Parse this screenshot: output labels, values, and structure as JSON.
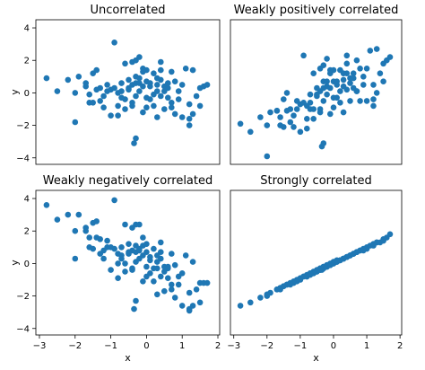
{
  "colors": {
    "marker": "#1f77b4"
  },
  "chart_data": [
    {
      "type": "scatter",
      "title": "Uncorrelated",
      "xlabel": "",
      "ylabel": "y",
      "xlim": [
        -3.1,
        2.05
      ],
      "ylim": [
        -4.4,
        4.5
      ],
      "xticks": [],
      "yticks": [
        -4,
        -2,
        0,
        2,
        4
      ],
      "xticklabels": [],
      "yticklabels": [
        "−4",
        "−2",
        "0",
        "2",
        "4"
      ],
      "x": [
        -2.8,
        -2.5,
        -2.2,
        -2.0,
        -1.9,
        -1.7,
        -1.6,
        -1.6,
        -1.5,
        -1.4,
        -1.4,
        -1.3,
        -1.3,
        -1.2,
        -1.1,
        -1.1,
        -1.0,
        -1.0,
        -0.9,
        -0.8,
        -0.8,
        -0.7,
        -0.7,
        -0.6,
        -0.6,
        -0.5,
        -0.5,
        -0.5,
        -0.4,
        -0.4,
        -0.4,
        -0.3,
        -0.3,
        -0.3,
        -0.3,
        -0.2,
        -0.2,
        -0.2,
        -0.1,
        -0.1,
        -0.1,
        0.0,
        0.0,
        0.0,
        0.0,
        0.1,
        0.1,
        0.1,
        0.2,
        0.2,
        0.3,
        0.3,
        0.3,
        0.4,
        0.4,
        0.4,
        0.5,
        0.5,
        0.5,
        0.6,
        0.6,
        0.7,
        0.7,
        0.8,
        0.8,
        0.9,
        1.0,
        1.0,
        1.1,
        1.2,
        1.2,
        1.3,
        1.3,
        1.4,
        1.5,
        1.6,
        1.7,
        -0.9,
        -0.3,
        -0.35,
        -2.0,
        -1.5,
        -0.2,
        -0.1,
        0.4,
        -0.6,
        0.9,
        1.2,
        -1.2,
        -0.8,
        0.2,
        1.5,
        0.7,
        -0.4,
        0.6,
        -1.7,
        -0.7,
        0.3
      ],
      "y": [
        0.9,
        0.1,
        0.8,
        -1.8,
        1.0,
        0.4,
        -0.6,
        -0.1,
        1.2,
        0.2,
        1.4,
        0.3,
        -0.5,
        -0.2,
        0.1,
        0.5,
        0.2,
        -1.4,
        0.3,
        0.0,
        -1.4,
        0.1,
        0.6,
        -0.4,
        -1.0,
        0.8,
        0.2,
        0.3,
        1.9,
        0.5,
        -0.6,
        0.6,
        1.0,
        -0.2,
        2.0,
        0.1,
        0.6,
        2.2,
        -1.2,
        0.4,
        1.5,
        -0.3,
        0.7,
        -0.9,
        1.4,
        0.4,
        0.6,
        -0.4,
        1.2,
        -0.8,
        0.1,
        0.5,
        -1.5,
        0.8,
        -0.2,
        1.9,
        0.1,
        0.4,
        -1.0,
        0.6,
        -0.3,
        1.3,
        -0.6,
        0.7,
        -1.3,
        0.1,
        0.5,
        -1.5,
        1.5,
        -1.6,
        -0.7,
        -1.3,
        1.4,
        -0.2,
        0.3,
        0.4,
        0.5,
        3.1,
        -2.8,
        -3.1,
        0.0,
        -0.6,
        0.9,
        1.3,
        1.4,
        1.8,
        -0.4,
        -2.0,
        -0.9,
        -0.8,
        -0.1,
        -0.8,
        -0.9,
        -0.8,
        0.3,
        0.6,
        -0.3,
        0.9
      ]
    },
    {
      "type": "scatter",
      "title": "Weakly positively correlated",
      "xlabel": "",
      "ylabel": "",
      "xlim": [
        -3.1,
        2.05
      ],
      "ylim": [
        -4.4,
        4.5
      ],
      "xticks": [],
      "yticks": [],
      "xticklabels": [],
      "yticklabels": [],
      "x": [
        -2.8,
        -2.5,
        -2.2,
        -2.0,
        -1.9,
        -1.7,
        -1.6,
        -1.6,
        -1.5,
        -1.4,
        -1.4,
        -1.3,
        -1.3,
        -1.2,
        -1.1,
        -1.1,
        -1.0,
        -1.0,
        -0.9,
        -0.8,
        -0.8,
        -0.7,
        -0.7,
        -0.6,
        -0.6,
        -0.5,
        -0.5,
        -0.5,
        -0.4,
        -0.4,
        -0.4,
        -0.3,
        -0.3,
        -0.3,
        -0.3,
        -0.2,
        -0.2,
        -0.2,
        -0.1,
        -0.1,
        -0.1,
        0.0,
        0.0,
        0.0,
        0.0,
        0.1,
        0.1,
        0.1,
        0.2,
        0.2,
        0.3,
        0.3,
        0.3,
        0.4,
        0.4,
        0.4,
        0.5,
        0.5,
        0.5,
        0.6,
        0.6,
        0.7,
        0.7,
        0.8,
        0.8,
        0.9,
        1.0,
        1.0,
        1.1,
        1.2,
        1.2,
        1.3,
        1.3,
        1.4,
        1.5,
        1.6,
        1.7,
        -0.9,
        -0.3,
        -0.35,
        -2.0,
        -1.5,
        -0.2,
        -0.1,
        0.4,
        -0.6,
        0.9,
        1.2,
        -1.2,
        -0.8,
        0.2,
        1.5,
        0.7,
        -0.4,
        0.6,
        -1.7,
        -0.7,
        0.3
      ],
      "y": [
        -1.9,
        -2.4,
        -1.5,
        -3.9,
        -1.2,
        -1.1,
        -2.0,
        -1.5,
        -0.4,
        -1.1,
        0.0,
        -1.0,
        -1.8,
        -1.4,
        -1.0,
        -0.5,
        -0.7,
        -2.4,
        -0.6,
        -0.8,
        -2.2,
        -0.6,
        -0.1,
        -1.0,
        -1.6,
        0.3,
        -0.2,
        -0.1,
        1.5,
        0.1,
        -1.0,
        0.3,
        0.7,
        -0.5,
        1.7,
        -0.1,
        0.4,
        2.1,
        -1.3,
        0.3,
        1.4,
        -0.3,
        0.7,
        -0.9,
        1.4,
        0.5,
        0.7,
        -0.3,
        1.4,
        -0.6,
        0.4,
        0.8,
        -1.2,
        1.2,
        0.2,
        2.3,
        0.6,
        0.9,
        -0.5,
        1.2,
        0.3,
        2.0,
        0.1,
        1.5,
        -0.5,
        1.0,
        1.5,
        -0.5,
        2.6,
        -0.4,
        0.5,
        0.0,
        2.7,
        1.2,
        1.8,
        2.0,
        2.2,
        2.3,
        -3.1,
        -3.3,
        -2.0,
        -2.1,
        0.7,
        1.2,
        1.8,
        1.2,
        0.5,
        -0.8,
        -2.1,
        -1.6,
        0.1,
        0.7,
        0.1,
        -1.2,
        0.9,
        -1.1,
        -1.0,
        1.2
      ]
    },
    {
      "type": "scatter",
      "title": "Weakly negatively correlated",
      "xlabel": "x",
      "ylabel": "y",
      "xlim": [
        -3.1,
        2.05
      ],
      "ylim": [
        -4.4,
        4.5
      ],
      "xticks": [
        -3,
        -2,
        -1,
        0,
        1,
        2
      ],
      "yticks": [
        -4,
        -2,
        0,
        2,
        4
      ],
      "xticklabels": [
        "−3",
        "−2",
        "−1",
        "0",
        "1",
        "2"
      ],
      "yticklabels": [
        "−4",
        "−2",
        "0",
        "2",
        "4"
      ],
      "x": [
        -2.8,
        -2.5,
        -2.2,
        -2.0,
        -1.9,
        -1.7,
        -1.6,
        -1.6,
        -1.5,
        -1.4,
        -1.4,
        -1.3,
        -1.3,
        -1.2,
        -1.1,
        -1.1,
        -1.0,
        -1.0,
        -0.9,
        -0.8,
        -0.8,
        -0.7,
        -0.7,
        -0.6,
        -0.6,
        -0.5,
        -0.5,
        -0.5,
        -0.4,
        -0.4,
        -0.4,
        -0.3,
        -0.3,
        -0.3,
        -0.3,
        -0.2,
        -0.2,
        -0.2,
        -0.1,
        -0.1,
        -0.1,
        0.0,
        0.0,
        0.0,
        0.0,
        0.1,
        0.1,
        0.1,
        0.2,
        0.2,
        0.3,
        0.3,
        0.3,
        0.4,
        0.4,
        0.4,
        0.5,
        0.5,
        0.5,
        0.6,
        0.6,
        0.7,
        0.7,
        0.8,
        0.8,
        0.9,
        1.0,
        1.0,
        1.1,
        1.2,
        1.2,
        1.3,
        1.3,
        1.4,
        1.5,
        1.6,
        1.7,
        -0.9,
        -0.3,
        -0.35,
        -2.0,
        -1.5,
        -0.2,
        -0.1,
        0.4,
        -0.6,
        0.9,
        1.2,
        -1.2,
        -0.8,
        0.2,
        1.5,
        0.7,
        -0.4,
        0.6,
        -1.7,
        -0.7,
        0.3
      ],
      "y": [
        3.6,
        2.7,
        3.0,
        0.3,
        3.0,
        2.0,
        1.0,
        1.6,
        2.5,
        1.6,
        2.6,
        1.5,
        0.6,
        0.8,
        1.0,
        1.4,
        1.0,
        -0.4,
        0.9,
        0.6,
        -0.9,
        0.5,
        1.0,
        0.0,
        -0.5,
        1.2,
        0.6,
        0.7,
        2.2,
        0.8,
        -0.4,
        0.7,
        1.1,
        0.1,
        2.4,
        0.3,
        0.8,
        2.4,
        -1.1,
        0.5,
        1.6,
        -0.2,
        0.7,
        -0.8,
        1.2,
        0.2,
        0.4,
        -0.6,
        0.9,
        -1.1,
        -0.3,
        0.1,
        -1.9,
        0.3,
        -0.8,
        1.3,
        -0.5,
        -0.2,
        -1.7,
        -0.2,
        -0.9,
        0.6,
        -1.3,
        -0.1,
        -2.1,
        -0.8,
        -0.6,
        -2.6,
        0.5,
        -2.8,
        -1.8,
        -2.6,
        0.1,
        -1.6,
        -1.2,
        -1.2,
        -1.2,
        3.9,
        -2.3,
        -2.8,
        2.0,
        0.9,
        0.9,
        1.1,
        0.7,
        2.4,
        -1.3,
        -2.9,
        0.3,
        -0.0,
        -0.3,
        -2.4,
        -1.6,
        -0.3,
        -0.3,
        2.2,
        0.3,
        0.5
      ]
    },
    {
      "type": "scatter",
      "title": "Strongly correlated",
      "xlabel": "x",
      "ylabel": "",
      "xlim": [
        -3.1,
        2.05
      ],
      "ylim": [
        -4.4,
        4.5
      ],
      "xticks": [
        -3,
        -2,
        -1,
        0,
        1,
        2
      ],
      "yticks": [],
      "xticklabels": [
        "−3",
        "−2",
        "−1",
        "0",
        "1",
        "2"
      ],
      "yticklabels": [],
      "x": [
        -2.8,
        -2.5,
        -2.2,
        -2.0,
        -1.9,
        -1.7,
        -1.6,
        -1.6,
        -1.5,
        -1.4,
        -1.4,
        -1.3,
        -1.3,
        -1.2,
        -1.1,
        -1.1,
        -1.0,
        -1.0,
        -0.9,
        -0.8,
        -0.8,
        -0.7,
        -0.7,
        -0.6,
        -0.6,
        -0.5,
        -0.5,
        -0.5,
        -0.4,
        -0.4,
        -0.4,
        -0.3,
        -0.3,
        -0.3,
        -0.3,
        -0.2,
        -0.2,
        -0.2,
        -0.1,
        -0.1,
        -0.1,
        0.0,
        0.0,
        0.0,
        0.0,
        0.1,
        0.1,
        0.1,
        0.2,
        0.2,
        0.3,
        0.3,
        0.3,
        0.4,
        0.4,
        0.4,
        0.5,
        0.5,
        0.5,
        0.6,
        0.6,
        0.7,
        0.7,
        0.8,
        0.8,
        0.9,
        1.0,
        1.0,
        1.1,
        1.2,
        1.2,
        1.3,
        1.3,
        1.4,
        1.5,
        1.6,
        1.7,
        -0.9,
        -0.3,
        -0.35,
        -2.0,
        -1.5,
        -0.2,
        -0.1,
        0.4,
        -0.6,
        0.9,
        1.2,
        -1.2,
        -0.8,
        0.2,
        1.5,
        0.7,
        -0.4,
        0.6,
        -1.7,
        -0.7,
        0.3
      ],
      "y": [
        -2.6,
        -2.4,
        -2.1,
        -2.0,
        -1.8,
        -1.6,
        -1.6,
        -1.5,
        -1.4,
        -1.3,
        -1.3,
        -1.3,
        -1.2,
        -1.1,
        -1.0,
        -1.1,
        -1.0,
        -0.9,
        -0.8,
        -0.8,
        -0.8,
        -0.7,
        -0.6,
        -0.6,
        -0.5,
        -0.5,
        -0.5,
        -0.4,
        -0.3,
        -0.4,
        -0.4,
        -0.3,
        -0.2,
        -0.3,
        -0.2,
        -0.2,
        -0.2,
        -0.1,
        -0.1,
        -0.1,
        0.0,
        0.0,
        0.0,
        0.1,
        0.1,
        0.1,
        0.1,
        0.2,
        0.2,
        0.2,
        0.3,
        0.3,
        0.3,
        0.4,
        0.4,
        0.4,
        0.5,
        0.5,
        0.5,
        0.6,
        0.6,
        0.7,
        0.7,
        0.8,
        0.8,
        0.9,
        1.0,
        0.9,
        1.1,
        1.1,
        1.2,
        1.3,
        1.3,
        1.3,
        1.4,
        1.6,
        1.8,
        -0.8,
        -0.3,
        -0.4,
        -1.9,
        -1.4,
        -0.1,
        -0.1,
        0.4,
        -0.6,
        0.8,
        1.2,
        -1.2,
        -0.7,
        0.2,
        1.5,
        0.7,
        -0.3,
        0.6,
        -1.6,
        -0.6,
        0.3
      ]
    }
  ]
}
